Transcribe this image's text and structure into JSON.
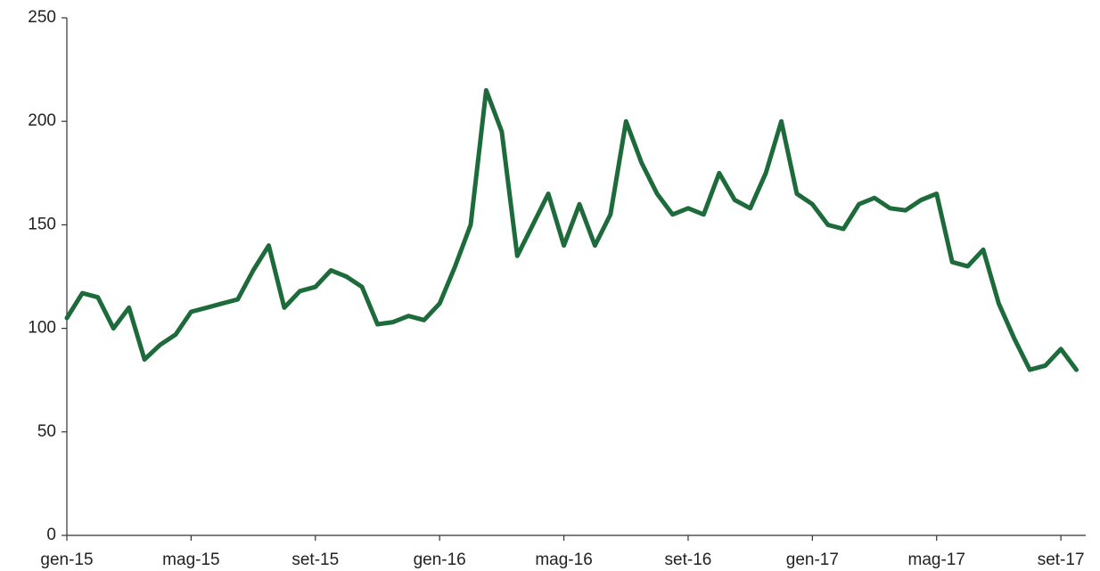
{
  "chart_data": {
    "type": "line",
    "categories": [
      "gen-15",
      null,
      null,
      null,
      null,
      null,
      null,
      null,
      "mag-15",
      null,
      null,
      null,
      null,
      null,
      null,
      null,
      "set-15",
      null,
      null,
      null,
      null,
      null,
      null,
      null,
      "gen-16",
      null,
      null,
      null,
      null,
      null,
      null,
      null,
      "mag-16",
      null,
      null,
      null,
      null,
      null,
      null,
      null,
      "set-16",
      null,
      null,
      null,
      null,
      null,
      null,
      null,
      "gen-17",
      null,
      null,
      null,
      null,
      null,
      null,
      null,
      "mag-17",
      null,
      null,
      null,
      null,
      null,
      null,
      null,
      "set-17",
      null
    ],
    "values": [
      105,
      117,
      115,
      100,
      110,
      85,
      92,
      97,
      108,
      110,
      112,
      114,
      128,
      140,
      110,
      118,
      120,
      128,
      125,
      120,
      102,
      103,
      106,
      104,
      112,
      130,
      150,
      215,
      195,
      135,
      150,
      165,
      140,
      160,
      140,
      155,
      200,
      180,
      165,
      155,
      158,
      155,
      175,
      162,
      158,
      175,
      200,
      165,
      160,
      150,
      148,
      160,
      163,
      158,
      157,
      162,
      165,
      132,
      130,
      138,
      112,
      95,
      80,
      82,
      90,
      80
    ],
    "color": "#1d6b3b",
    "ylim": [
      0,
      250
    ],
    "yticks": [
      0,
      50,
      100,
      150,
      200,
      250
    ],
    "grid": false
  }
}
